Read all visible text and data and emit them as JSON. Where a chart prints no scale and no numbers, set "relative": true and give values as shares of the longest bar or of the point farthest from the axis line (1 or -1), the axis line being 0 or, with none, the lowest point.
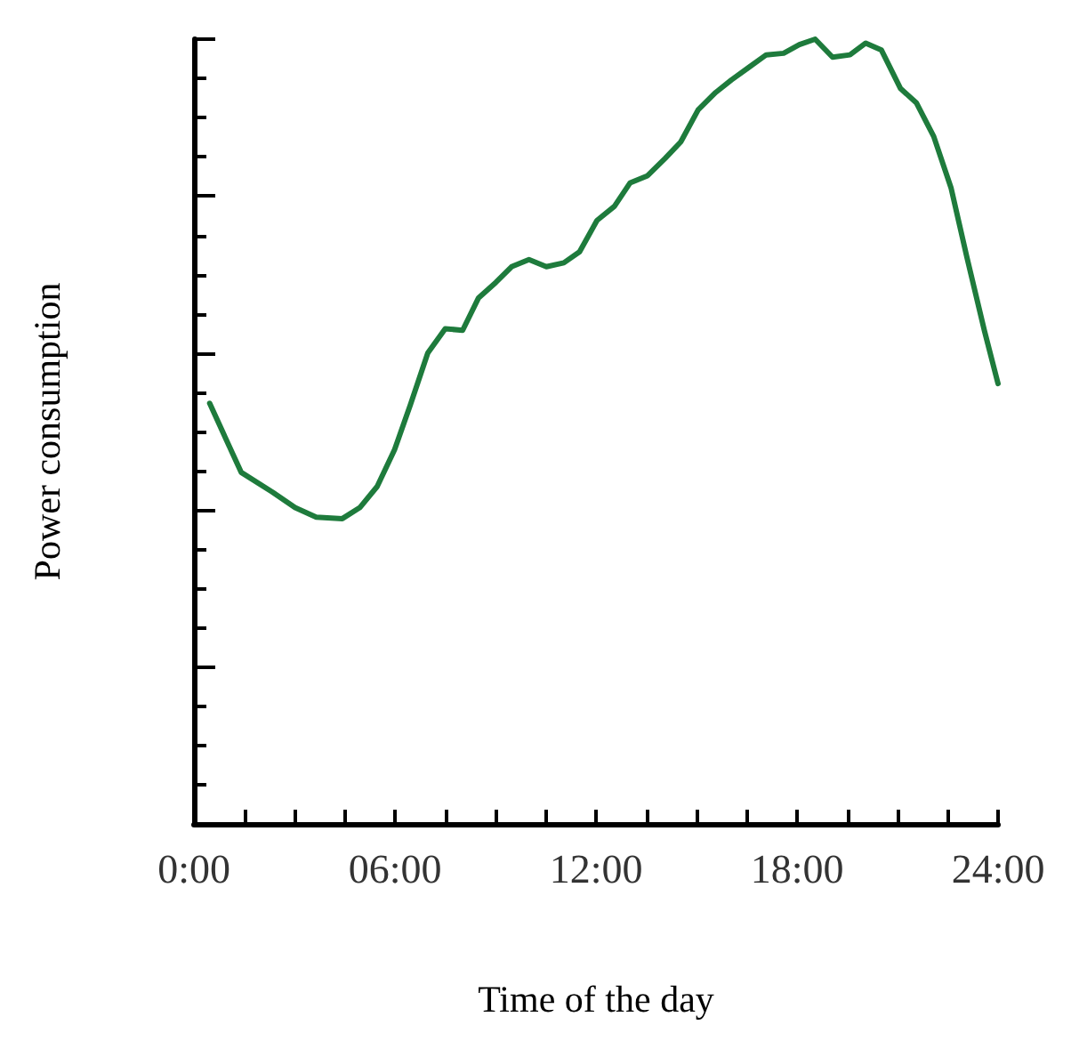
{
  "chart_data": {
    "type": "line",
    "relative": true,
    "xlabel": "Time of the day",
    "ylabel": "Power consumption",
    "xlim": [
      0,
      24
    ],
    "xticks": [
      {
        "value": 0,
        "label": "0:00"
      },
      {
        "value": 1.5,
        "label": null
      },
      {
        "value": 3,
        "label": null
      },
      {
        "value": 4.5,
        "label": null
      },
      {
        "value": 6,
        "label": "06:00"
      },
      {
        "value": 7.5,
        "label": null
      },
      {
        "value": 9,
        "label": null
      },
      {
        "value": 10.5,
        "label": null
      },
      {
        "value": 12,
        "label": "12:00"
      },
      {
        "value": 13.5,
        "label": null
      },
      {
        "value": 15,
        "label": null
      },
      {
        "value": 16.5,
        "label": null
      },
      {
        "value": 18,
        "label": "18:00"
      },
      {
        "value": 19.5,
        "label": null
      },
      {
        "value": 21,
        "label": null
      },
      {
        "value": 22.5,
        "label": null
      },
      {
        "value": 24,
        "label": "24:00"
      }
    ],
    "x": [
      0.47,
      1.41,
      2.34,
      3.02,
      3.65,
      4.43,
      4.95,
      5.47,
      5.99,
      6.46,
      6.98,
      7.5,
      8.02,
      8.49,
      9.01,
      9.48,
      10.0,
      10.52,
      11.04,
      11.51,
      12.03,
      12.55,
      13.02,
      13.54,
      14.06,
      14.53,
      15.05,
      15.57,
      16.04,
      16.56,
      17.08,
      17.6,
      18.07,
      18.54,
      19.06,
      19.58,
      20.05,
      20.52,
      21.09,
      21.56,
      22.08,
      22.6,
      23.07,
      23.59,
      24.0
    ],
    "series": [
      {
        "color": "#1e7b3c",
        "values": [
          0.536,
          0.448,
          0.423,
          0.403,
          0.391,
          0.389,
          0.403,
          0.43,
          0.477,
          0.534,
          0.6,
          0.631,
          0.629,
          0.67,
          0.69,
          0.71,
          0.719,
          0.71,
          0.715,
          0.729,
          0.769,
          0.787,
          0.817,
          0.826,
          0.848,
          0.869,
          0.91,
          0.932,
          0.948,
          0.964,
          0.98,
          0.982,
          0.993,
          1.0,
          0.977,
          0.98,
          0.995,
          0.986,
          0.937,
          0.919,
          0.876,
          0.81,
          0.722,
          0.629,
          0.561
        ]
      }
    ],
    "grid": false,
    "marker": "none",
    "line_style": "solid"
  }
}
